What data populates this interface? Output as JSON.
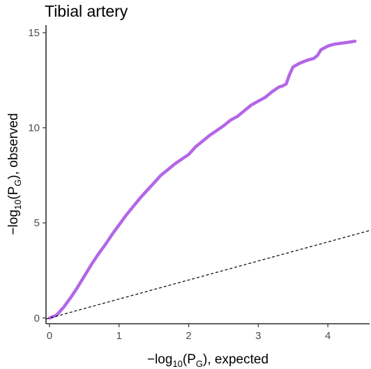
{
  "chart_data": {
    "type": "line",
    "title": "Tibial artery",
    "xlabel": {
      "prefix": "−log",
      "sub1": "10",
      "mid": "(P",
      "sub2": "G",
      "suffix": "), expected"
    },
    "ylabel": {
      "prefix": "−log",
      "sub1": "10",
      "mid": "(P",
      "sub2": "G",
      "suffix": "), observed"
    },
    "xlim": [
      -0.05,
      4.6
    ],
    "ylim": [
      -0.3,
      15.4
    ],
    "x_ticks": [
      0,
      1,
      2,
      3,
      4
    ],
    "y_ticks": [
      0,
      5,
      10,
      15
    ],
    "grid": false,
    "series": [
      {
        "role": "observed",
        "style": "thick-line",
        "color": "#b366e6",
        "x": [
          0,
          0.1,
          0.2,
          0.3,
          0.4,
          0.5,
          0.6,
          0.7,
          0.8,
          0.9,
          1.0,
          1.1,
          1.2,
          1.3,
          1.4,
          1.5,
          1.6,
          1.7,
          1.8,
          1.9,
          2.0,
          2.1,
          2.2,
          2.3,
          2.4,
          2.5,
          2.6,
          2.7,
          2.8,
          2.9,
          3.0,
          3.1,
          3.2,
          3.3,
          3.35,
          3.4,
          3.45,
          3.5,
          3.6,
          3.7,
          3.8,
          3.85,
          3.9,
          4.0,
          4.1,
          4.2,
          4.3,
          4.39
        ],
        "y": [
          0,
          0.15,
          0.55,
          1.05,
          1.6,
          2.2,
          2.8,
          3.35,
          3.85,
          4.4,
          4.9,
          5.4,
          5.85,
          6.3,
          6.7,
          7.1,
          7.5,
          7.8,
          8.1,
          8.35,
          8.6,
          9.0,
          9.3,
          9.6,
          9.85,
          10.1,
          10.4,
          10.6,
          10.9,
          11.2,
          11.4,
          11.6,
          11.9,
          12.15,
          12.2,
          12.3,
          12.8,
          13.2,
          13.4,
          13.55,
          13.65,
          13.8,
          14.1,
          14.3,
          14.4,
          14.45,
          14.5,
          14.55
        ]
      },
      {
        "role": "expected",
        "style": "dashed-line",
        "color": "#000000",
        "x": [
          -0.05,
          4.6
        ],
        "y": [
          -0.05,
          4.6
        ]
      }
    ]
  }
}
